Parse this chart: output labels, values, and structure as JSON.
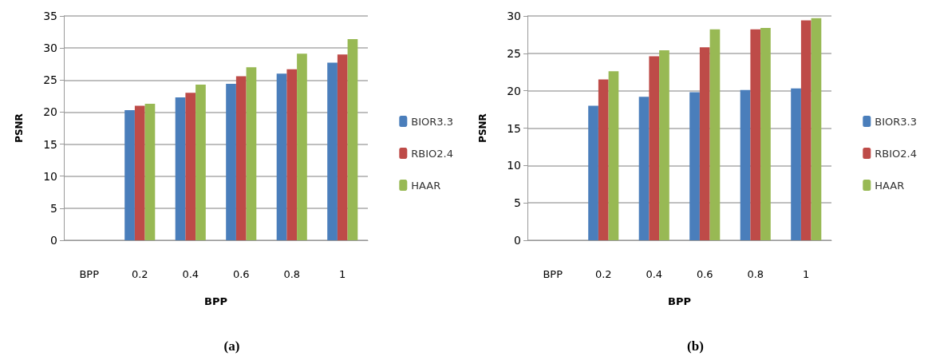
{
  "chart_data": [
    {
      "type": "bar",
      "title": "(a)",
      "xlabel": "BPP",
      "ylabel": "PSNR",
      "categories": [
        "BPP",
        "0.2",
        "0.4",
        "0.6",
        "0.8",
        "1"
      ],
      "ylim": [
        0,
        35
      ],
      "yticks": [
        0,
        5,
        10,
        15,
        20,
        25,
        30,
        35
      ],
      "grid": "y",
      "legend": "right",
      "series": [
        {
          "name": "BIOR3.3",
          "color": "#4a7ebb",
          "values": [
            null,
            20.3,
            22.3,
            24.4,
            26.0,
            27.7
          ]
        },
        {
          "name": "RBIO2.4",
          "color": "#be4b48",
          "values": [
            null,
            21.0,
            23.0,
            25.6,
            26.7,
            29.0
          ]
        },
        {
          "name": "HAAR",
          "color": "#98b954",
          "values": [
            null,
            21.3,
            24.3,
            27.0,
            29.1,
            31.4
          ]
        }
      ]
    },
    {
      "type": "bar",
      "title": "(b)",
      "xlabel": "BPP",
      "ylabel": "PSNR",
      "categories": [
        "BPP",
        "0.2",
        "0.4",
        "0.6",
        "0.8",
        "1"
      ],
      "ylim": [
        0,
        30
      ],
      "yticks": [
        0,
        5,
        10,
        15,
        20,
        25,
        30
      ],
      "grid": "y",
      "legend": "right",
      "series": [
        {
          "name": "BIOR3.3",
          "color": "#4a7ebb",
          "values": [
            null,
            18.0,
            19.2,
            19.8,
            20.1,
            20.3
          ]
        },
        {
          "name": "RBIO2.4",
          "color": "#be4b48",
          "values": [
            null,
            21.5,
            24.6,
            25.8,
            28.2,
            29.4
          ]
        },
        {
          "name": "HAAR",
          "color": "#98b954",
          "values": [
            null,
            22.6,
            25.4,
            28.2,
            28.4,
            29.7
          ]
        }
      ]
    }
  ]
}
